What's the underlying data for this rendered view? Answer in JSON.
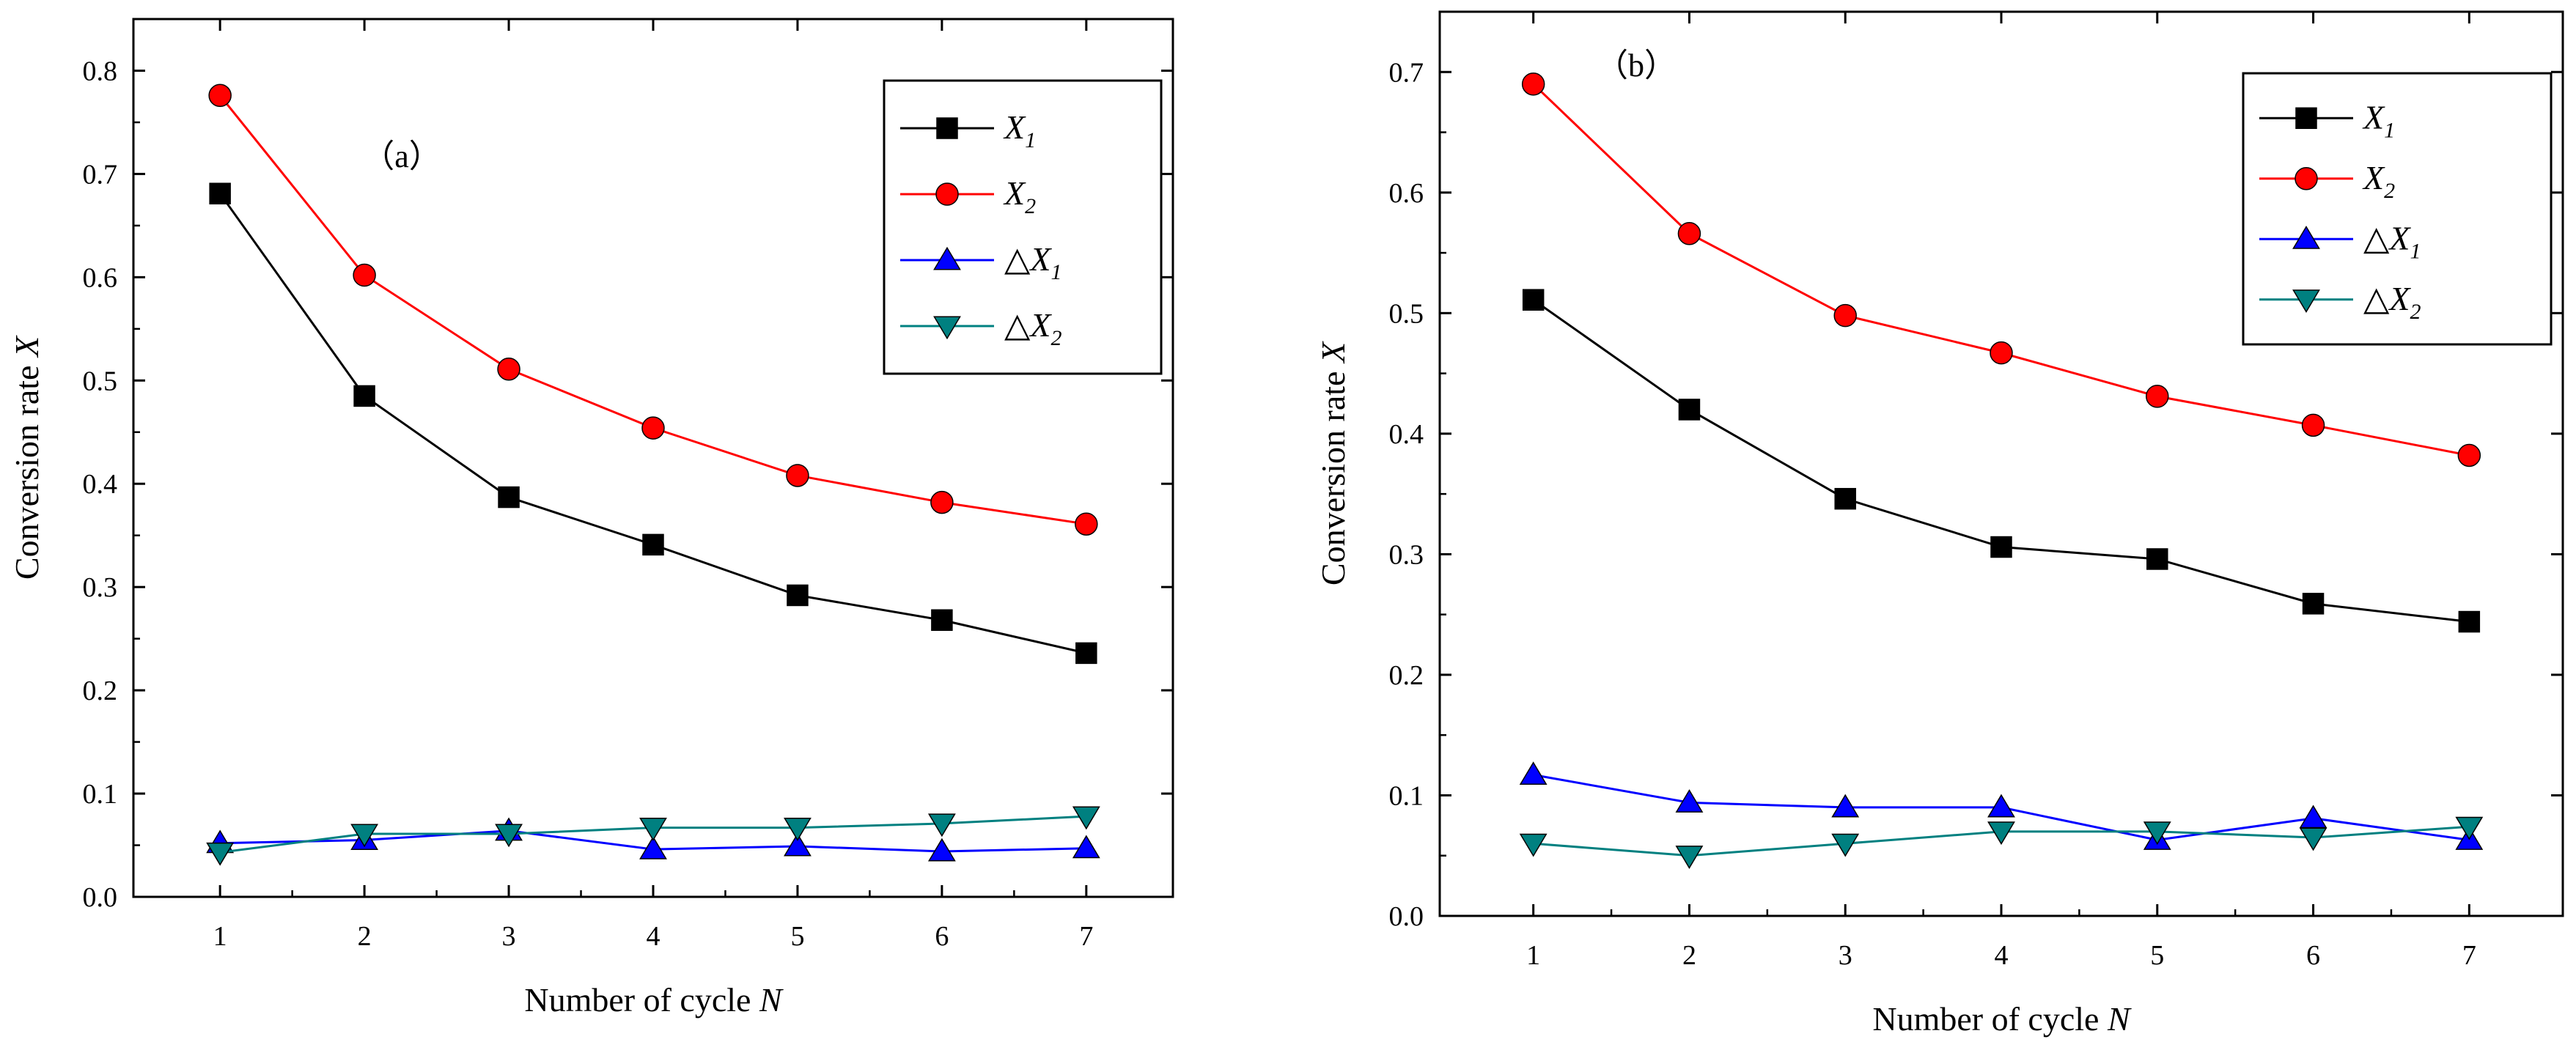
{
  "chart_data": [
    {
      "type": "line",
      "panel_label": "（a）",
      "xlabel": "Number of cycle ",
      "xlabel_var": "N",
      "ylabel": "Conversion rate ",
      "ylabel_var": "X",
      "x": [
        1,
        2,
        3,
        4,
        5,
        6,
        7
      ],
      "xlim": [
        0.4,
        7.6
      ],
      "ylim": [
        0.0,
        0.85
      ],
      "yticks": [
        0.0,
        0.1,
        0.2,
        0.3,
        0.4,
        0.5,
        0.6,
        0.7,
        0.8
      ],
      "yticks_fmt": [
        "0.0",
        "0.1",
        "0.2",
        "0.3",
        "0.4",
        "0.5",
        "0.6",
        "0.7",
        "0.8"
      ],
      "legend_position": "top-right",
      "series": [
        {
          "name": "X1",
          "prefix": "",
          "var": "X",
          "sub": "1",
          "color": "#000000",
          "marker": "square",
          "values": [
            0.681,
            0.485,
            0.387,
            0.341,
            0.292,
            0.268,
            0.236
          ]
        },
        {
          "name": "X2",
          "prefix": "",
          "var": "X",
          "sub": "2",
          "color": "#ff0000",
          "marker": "circle",
          "values": [
            0.776,
            0.602,
            0.511,
            0.454,
            0.408,
            0.382,
            0.361
          ]
        },
        {
          "name": "ΔX1",
          "prefix": "△",
          "var": "X",
          "sub": "1",
          "color": "#0000ff",
          "marker": "triangle-up",
          "values": [
            0.052,
            0.055,
            0.064,
            0.046,
            0.049,
            0.044,
            0.047
          ]
        },
        {
          "name": "ΔX2",
          "prefix": "△",
          "var": "X",
          "sub": "2",
          "color": "#008080",
          "marker": "triangle-down",
          "values": [
            0.043,
            0.061,
            0.061,
            0.067,
            0.067,
            0.071,
            0.078
          ]
        }
      ]
    },
    {
      "type": "line",
      "panel_label": "（b）",
      "xlabel": "Number of cycle ",
      "xlabel_var": "N",
      "ylabel": "Conversion rate ",
      "ylabel_var": "X",
      "x": [
        1,
        2,
        3,
        4,
        5,
        6,
        7
      ],
      "xlim": [
        0.4,
        7.6
      ],
      "ylim": [
        0.0,
        0.75
      ],
      "yticks": [
        0.0,
        0.1,
        0.2,
        0.3,
        0.4,
        0.5,
        0.6,
        0.7
      ],
      "yticks_fmt": [
        "0.0",
        "0.1",
        "0.2",
        "0.3",
        "0.4",
        "0.5",
        "0.6",
        "0.7"
      ],
      "legend_position": "top-right",
      "series": [
        {
          "name": "X1",
          "prefix": "",
          "var": "X",
          "sub": "1",
          "color": "#000000",
          "marker": "square",
          "values": [
            0.511,
            0.42,
            0.346,
            0.306,
            0.296,
            0.259,
            0.244
          ]
        },
        {
          "name": "X2",
          "prefix": "",
          "var": "X",
          "sub": "2",
          "color": "#ff0000",
          "marker": "circle",
          "values": [
            0.69,
            0.566,
            0.498,
            0.467,
            0.431,
            0.407,
            0.382
          ]
        },
        {
          "name": "ΔX1",
          "prefix": "△",
          "var": "X",
          "sub": "1",
          "color": "#0000ff",
          "marker": "triangle-up",
          "values": [
            0.117,
            0.094,
            0.09,
            0.09,
            0.063,
            0.081,
            0.063
          ]
        },
        {
          "name": "ΔX2",
          "prefix": "△",
          "var": "X",
          "sub": "2",
          "color": "#008080",
          "marker": "triangle-down",
          "values": [
            0.06,
            0.05,
            0.06,
            0.07,
            0.07,
            0.065,
            0.074
          ]
        }
      ]
    }
  ]
}
